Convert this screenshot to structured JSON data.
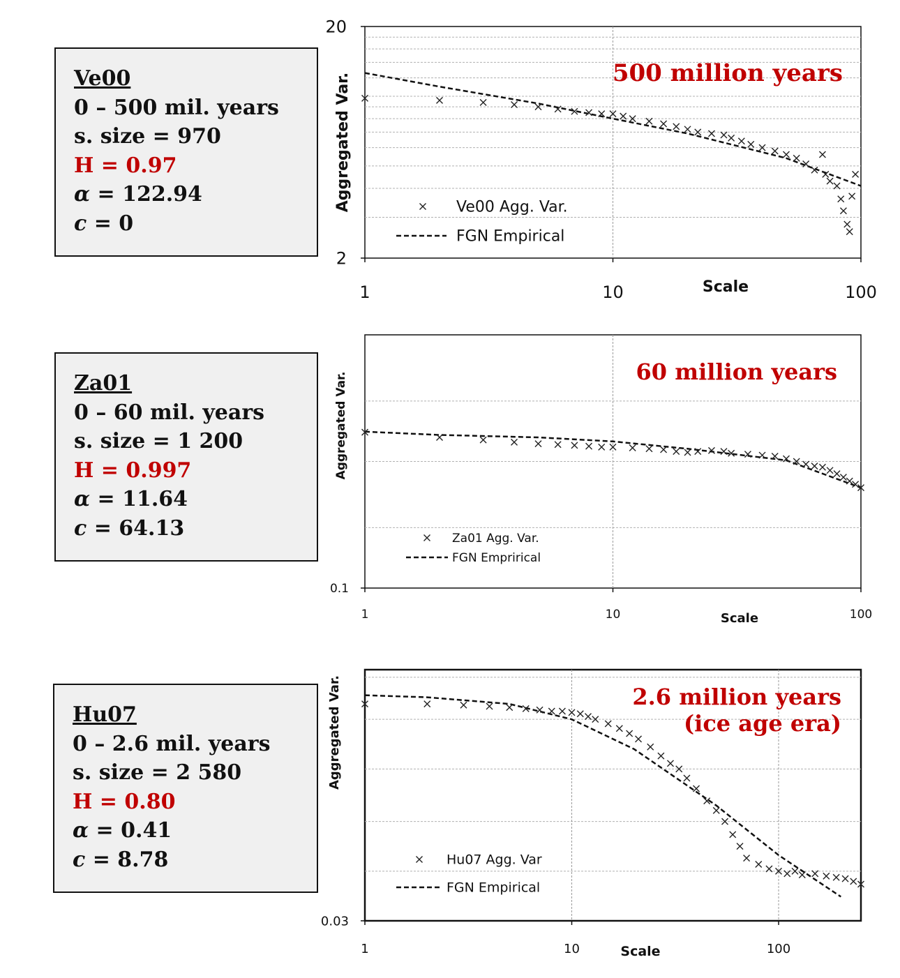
{
  "panels": [
    {
      "id": "ve00",
      "info": {
        "dataset": "Ve00",
        "range": "0 – 500 mil. years",
        "sample_size": "s. size = 970",
        "hurst": "H = 0.97",
        "alpha_symbol": "α",
        "alpha_value": " = 122.94",
        "c_symbol": "c",
        "c_value": " = 0"
      },
      "chart_data": {
        "type": "scatter",
        "x_scale": "log",
        "y_scale": "log",
        "xlim": [
          1,
          100
        ],
        "ylim": [
          2,
          20
        ],
        "x_ticks": [
          "1",
          "10",
          "100"
        ],
        "y_ticks": [
          "2",
          "20"
        ],
        "xlabel": "Scale",
        "ylabel": "Aggregated Var.",
        "annotation": [
          "500 million years"
        ],
        "legend_position": "lower-left",
        "grid": true,
        "series": [
          {
            "name": "Ve00 Agg. Var.",
            "marker": "x",
            "x": [
              1,
              2,
              3,
              4,
              5,
              6,
              7,
              8,
              9,
              10,
              11,
              12,
              14,
              16,
              18,
              20,
              22,
              25,
              28,
              30,
              33,
              36,
              40,
              45,
              50,
              55,
              60,
              65,
              70,
              72,
              75,
              80,
              83,
              85,
              88,
              90,
              92,
              95
            ],
            "y": [
              9.8,
              9.6,
              9.4,
              9.2,
              9.0,
              8.8,
              8.6,
              8.5,
              8.4,
              8.4,
              8.2,
              8.0,
              7.8,
              7.6,
              7.4,
              7.2,
              7.0,
              6.9,
              6.8,
              6.6,
              6.4,
              6.2,
              6.0,
              5.8,
              5.6,
              5.4,
              5.1,
              4.8,
              5.6,
              4.6,
              4.3,
              4.1,
              3.6,
              3.2,
              2.8,
              2.6,
              3.7,
              4.6
            ]
          },
          {
            "name": "FGN Empirical",
            "style": "dashed",
            "x": [
              1,
              2,
              5,
              10,
              20,
              50,
              100
            ],
            "y": [
              12.6,
              11.0,
              9.3,
              8.0,
              6.9,
              5.4,
              4.1
            ]
          }
        ]
      }
    },
    {
      "id": "za01",
      "info": {
        "dataset": "Za01",
        "range": "0 – 60 mil. years",
        "sample_size": "s. size = 1 200",
        "hurst": "H = 0.997",
        "alpha_symbol": "α",
        "alpha_value": " = 11.64",
        "c_symbol": "c",
        "c_value": " = 64.13"
      },
      "chart_data": {
        "type": "scatter",
        "x_scale": "log",
        "y_scale": "log",
        "xlim": [
          1,
          100
        ],
        "ylim": [
          0.1,
          10
        ],
        "x_ticks": [
          "1",
          "10",
          "100"
        ],
        "y_ticks": [
          "0.1"
        ],
        "xlabel": "Scale",
        "ylabel": "Aggregated Var.",
        "annotation": [
          "60 million years"
        ],
        "legend_position": "lower-left",
        "grid": true,
        "series": [
          {
            "name": "Za01 Agg. Var.",
            "marker": "x",
            "x": [
              1,
              2,
              3,
              4,
              5,
              6,
              7,
              8,
              9,
              10,
              12,
              14,
              16,
              18,
              20,
              22,
              25,
              28,
              30,
              35,
              40,
              45,
              50,
              55,
              60,
              65,
              70,
              75,
              80,
              85,
              90,
              95,
              100
            ],
            "y": [
              1.7,
              1.55,
              1.48,
              1.42,
              1.38,
              1.36,
              1.34,
              1.32,
              1.3,
              1.3,
              1.28,
              1.26,
              1.24,
              1.2,
              1.18,
              1.2,
              1.22,
              1.2,
              1.16,
              1.14,
              1.12,
              1.1,
              1.05,
              1.0,
              0.95,
              0.92,
              0.9,
              0.85,
              0.8,
              0.75,
              0.7,
              0.66,
              0.62
            ]
          },
          {
            "name": "FGN Emprirical",
            "style": "dashed",
            "x": [
              1,
              2,
              5,
              10,
              20,
              50,
              100
            ],
            "y": [
              1.72,
              1.62,
              1.55,
              1.44,
              1.26,
              1.02,
              0.62
            ]
          }
        ]
      }
    },
    {
      "id": "hu07",
      "info": {
        "dataset": "Hu07",
        "range": "0 – 2.6 mil. years",
        "sample_size": "s. size = 2 580",
        "hurst": "H = 0.80",
        "alpha_symbol": "α",
        "alpha_value": " = 0.41",
        "c_symbol": "c",
        "c_value": " = 8.78"
      },
      "chart_data": {
        "type": "scatter",
        "x_scale": "log",
        "y_scale": "log",
        "xlim": [
          1,
          250
        ],
        "ylim": [
          0.03,
          1
        ],
        "x_ticks": [
          "1",
          "10",
          "100"
        ],
        "y_ticks": [
          "0.03"
        ],
        "xlabel": "Scale",
        "ylabel": "Aggregated Var.",
        "annotation": [
          "2.6 million years",
          "(ice age era)"
        ],
        "legend_position": "lower-left",
        "grid": true,
        "series": [
          {
            "name": "Hu07 Agg. Var",
            "marker": "x",
            "x": [
              1,
              2,
              3,
              4,
              5,
              6,
              7,
              8,
              9,
              10,
              11,
              12,
              13,
              15,
              17,
              19,
              21,
              24,
              27,
              30,
              33,
              36,
              40,
              45,
              50,
              55,
              60,
              65,
              70,
              80,
              90,
              100,
              110,
              120,
              130,
              150,
              170,
              190,
              210,
              230,
              250
            ],
            "y": [
              0.62,
              0.62,
              0.61,
              0.6,
              0.59,
              0.58,
              0.57,
              0.56,
              0.56,
              0.55,
              0.54,
              0.52,
              0.5,
              0.47,
              0.44,
              0.41,
              0.38,
              0.34,
              0.3,
              0.27,
              0.25,
              0.22,
              0.19,
              0.16,
              0.14,
              0.12,
              0.1,
              0.085,
              0.072,
              0.066,
              0.062,
              0.06,
              0.058,
              0.06,
              0.057,
              0.058,
              0.056,
              0.055,
              0.054,
              0.052,
              0.05
            ]
          },
          {
            "name": "FGN Empirical",
            "style": "dashed",
            "x": [
              1,
              2,
              5,
              10,
              20,
              50,
              100,
              200
            ],
            "y": [
              0.7,
              0.68,
              0.62,
              0.5,
              0.33,
              0.15,
              0.075,
              0.042
            ]
          }
        ]
      }
    }
  ]
}
